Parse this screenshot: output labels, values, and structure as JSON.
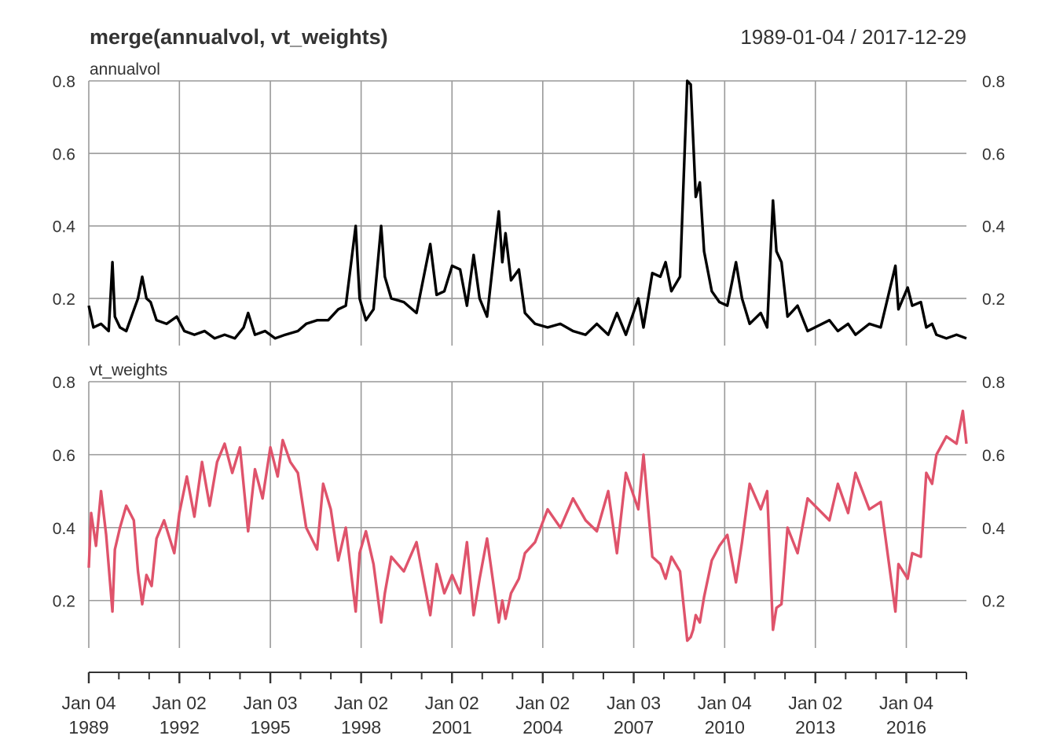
{
  "chart_data": {
    "type": "line",
    "title": "merge(annualvol, vt_weights)",
    "date_range": "1989-01-04 / 2017-12-29",
    "x_ticks": [
      {
        "date": "1989-01-04",
        "label_top": "Jan 04",
        "label_bottom": "1989"
      },
      {
        "date": "1992-01-02",
        "label_top": "Jan 02",
        "label_bottom": "1992"
      },
      {
        "date": "1995-01-03",
        "label_top": "Jan 03",
        "label_bottom": "1995"
      },
      {
        "date": "1998-01-02",
        "label_top": "Jan 02",
        "label_bottom": "1998"
      },
      {
        "date": "2001-01-02",
        "label_top": "Jan 02",
        "label_bottom": "2001"
      },
      {
        "date": "2004-01-02",
        "label_top": "Jan 02",
        "label_bottom": "2004"
      },
      {
        "date": "2007-01-03",
        "label_top": "Jan 03",
        "label_bottom": "2007"
      },
      {
        "date": "2010-01-04",
        "label_top": "Jan 04",
        "label_bottom": "2010"
      },
      {
        "date": "2013-01-02",
        "label_top": "Jan 02",
        "label_bottom": "2013"
      },
      {
        "date": "2016-01-04",
        "label_top": "Jan 04",
        "label_bottom": "2016"
      }
    ],
    "x_range": [
      "1989-01-04",
      "2017-12-29"
    ],
    "grid": true,
    "panels": [
      {
        "name": "annualvol",
        "color": "#000000",
        "ylim": [
          0.07,
          0.8
        ],
        "yticks": [
          "0.2",
          "0.4",
          "0.6",
          "0.8"
        ],
        "points": [
          [
            "1989-01-04",
            0.18
          ],
          [
            "1989-03-01",
            0.12
          ],
          [
            "1989-06-01",
            0.13
          ],
          [
            "1989-09-01",
            0.11
          ],
          [
            "1989-10-16",
            0.3
          ],
          [
            "1989-11-15",
            0.15
          ],
          [
            "1990-01-15",
            0.12
          ],
          [
            "1990-04-01",
            0.11
          ],
          [
            "1990-08-20",
            0.2
          ],
          [
            "1990-10-10",
            0.26
          ],
          [
            "1990-12-01",
            0.2
          ],
          [
            "1991-01-20",
            0.19
          ],
          [
            "1991-04-01",
            0.14
          ],
          [
            "1991-08-01",
            0.13
          ],
          [
            "1991-12-01",
            0.15
          ],
          [
            "1992-03-01",
            0.11
          ],
          [
            "1992-07-01",
            0.1
          ],
          [
            "1992-11-01",
            0.11
          ],
          [
            "1993-03-01",
            0.09
          ],
          [
            "1993-07-01",
            0.1
          ],
          [
            "1993-11-01",
            0.09
          ],
          [
            "1994-02-15",
            0.12
          ],
          [
            "1994-04-10",
            0.16
          ],
          [
            "1994-07-01",
            0.1
          ],
          [
            "1994-11-01",
            0.11
          ],
          [
            "1995-03-01",
            0.09
          ],
          [
            "1995-07-01",
            0.1
          ],
          [
            "1995-12-01",
            0.11
          ],
          [
            "1996-03-10",
            0.13
          ],
          [
            "1996-07-20",
            0.14
          ],
          [
            "1996-12-01",
            0.14
          ],
          [
            "1997-04-01",
            0.17
          ],
          [
            "1997-07-01",
            0.18
          ],
          [
            "1997-10-28",
            0.4
          ],
          [
            "1997-12-15",
            0.2
          ],
          [
            "1998-03-01",
            0.14
          ],
          [
            "1998-06-01",
            0.17
          ],
          [
            "1998-08-31",
            0.4
          ],
          [
            "1998-10-15",
            0.26
          ],
          [
            "1999-01-01",
            0.2
          ],
          [
            "1999-06-01",
            0.19
          ],
          [
            "1999-11-01",
            0.16
          ],
          [
            "2000-04-15",
            0.35
          ],
          [
            "2000-07-01",
            0.21
          ],
          [
            "2000-10-01",
            0.22
          ],
          [
            "2001-01-03",
            0.29
          ],
          [
            "2001-04-10",
            0.28
          ],
          [
            "2001-07-01",
            0.18
          ],
          [
            "2001-09-20",
            0.32
          ],
          [
            "2001-12-01",
            0.2
          ],
          [
            "2002-03-01",
            0.15
          ],
          [
            "2002-07-20",
            0.44
          ],
          [
            "2002-09-01",
            0.3
          ],
          [
            "2002-10-10",
            0.38
          ],
          [
            "2002-12-15",
            0.25
          ],
          [
            "2003-03-20",
            0.28
          ],
          [
            "2003-06-01",
            0.16
          ],
          [
            "2003-10-01",
            0.13
          ],
          [
            "2004-03-01",
            0.12
          ],
          [
            "2004-08-01",
            0.13
          ],
          [
            "2005-01-01",
            0.11
          ],
          [
            "2005-06-01",
            0.1
          ],
          [
            "2005-10-15",
            0.13
          ],
          [
            "2006-03-01",
            0.1
          ],
          [
            "2006-06-15",
            0.16
          ],
          [
            "2006-10-01",
            0.1
          ],
          [
            "2007-02-27",
            0.2
          ],
          [
            "2007-05-01",
            0.12
          ],
          [
            "2007-08-15",
            0.27
          ],
          [
            "2007-11-20",
            0.26
          ],
          [
            "2008-01-22",
            0.3
          ],
          [
            "2008-04-01",
            0.22
          ],
          [
            "2008-07-15",
            0.26
          ],
          [
            "2008-10-10",
            0.8
          ],
          [
            "2008-11-20",
            0.79
          ],
          [
            "2008-12-20",
            0.64
          ],
          [
            "2009-01-20",
            0.48
          ],
          [
            "2009-03-10",
            0.52
          ],
          [
            "2009-05-01",
            0.33
          ],
          [
            "2009-08-01",
            0.22
          ],
          [
            "2009-11-01",
            0.19
          ],
          [
            "2010-02-05",
            0.18
          ],
          [
            "2010-05-20",
            0.3
          ],
          [
            "2010-08-01",
            0.2
          ],
          [
            "2010-11-01",
            0.13
          ],
          [
            "2011-03-15",
            0.16
          ],
          [
            "2011-06-01",
            0.12
          ],
          [
            "2011-08-10",
            0.47
          ],
          [
            "2011-09-20",
            0.33
          ],
          [
            "2011-11-20",
            0.3
          ],
          [
            "2012-02-01",
            0.15
          ],
          [
            "2012-06-01",
            0.18
          ],
          [
            "2012-10-01",
            0.11
          ],
          [
            "2013-06-20",
            0.14
          ],
          [
            "2013-10-01",
            0.11
          ],
          [
            "2014-02-01",
            0.13
          ],
          [
            "2014-05-01",
            0.1
          ],
          [
            "2014-10-15",
            0.13
          ],
          [
            "2015-03-01",
            0.12
          ],
          [
            "2015-08-25",
            0.29
          ],
          [
            "2015-10-01",
            0.17
          ],
          [
            "2016-01-20",
            0.23
          ],
          [
            "2016-03-15",
            0.18
          ],
          [
            "2016-06-27",
            0.19
          ],
          [
            "2016-09-01",
            0.12
          ],
          [
            "2016-11-10",
            0.13
          ],
          [
            "2017-01-01",
            0.1
          ],
          [
            "2017-05-01",
            0.09
          ],
          [
            "2017-09-01",
            0.1
          ],
          [
            "2017-12-29",
            0.09
          ]
        ]
      },
      {
        "name": "vt_weights",
        "color": "#DF536B",
        "ylim": [
          0.07,
          0.8
        ],
        "yticks": [
          "0.2",
          "0.4",
          "0.6",
          "0.8"
        ],
        "points": [
          [
            "1989-01-04",
            0.29
          ],
          [
            "1989-02-01",
            0.44
          ],
          [
            "1989-04-01",
            0.35
          ],
          [
            "1989-06-01",
            0.5
          ],
          [
            "1989-08-01",
            0.38
          ],
          [
            "1989-10-16",
            0.17
          ],
          [
            "1989-11-15",
            0.34
          ],
          [
            "1990-01-15",
            0.4
          ],
          [
            "1990-04-01",
            0.46
          ],
          [
            "1990-07-01",
            0.42
          ],
          [
            "1990-08-20",
            0.28
          ],
          [
            "1990-10-10",
            0.19
          ],
          [
            "1990-12-01",
            0.27
          ],
          [
            "1991-02-01",
            0.24
          ],
          [
            "1991-04-01",
            0.37
          ],
          [
            "1991-07-01",
            0.42
          ],
          [
            "1991-11-01",
            0.33
          ],
          [
            "1992-01-02",
            0.44
          ],
          [
            "1992-04-01",
            0.54
          ],
          [
            "1992-07-01",
            0.43
          ],
          [
            "1992-10-01",
            0.58
          ],
          [
            "1993-01-01",
            0.46
          ],
          [
            "1993-04-01",
            0.58
          ],
          [
            "1993-07-01",
            0.63
          ],
          [
            "1993-10-01",
            0.55
          ],
          [
            "1994-01-01",
            0.62
          ],
          [
            "1994-04-10",
            0.39
          ],
          [
            "1994-07-01",
            0.56
          ],
          [
            "1994-10-01",
            0.48
          ],
          [
            "1995-01-03",
            0.62
          ],
          [
            "1995-04-01",
            0.54
          ],
          [
            "1995-06-01",
            0.64
          ],
          [
            "1995-09-01",
            0.58
          ],
          [
            "1995-12-01",
            0.55
          ],
          [
            "1996-03-10",
            0.4
          ],
          [
            "1996-07-20",
            0.34
          ],
          [
            "1996-10-01",
            0.52
          ],
          [
            "1997-01-01",
            0.45
          ],
          [
            "1997-04-01",
            0.31
          ],
          [
            "1997-07-01",
            0.4
          ],
          [
            "1997-10-28",
            0.17
          ],
          [
            "1997-12-15",
            0.33
          ],
          [
            "1998-03-01",
            0.39
          ],
          [
            "1998-06-01",
            0.3
          ],
          [
            "1998-08-31",
            0.14
          ],
          [
            "1998-10-15",
            0.22
          ],
          [
            "1999-01-01",
            0.32
          ],
          [
            "1999-06-01",
            0.28
          ],
          [
            "1999-11-01",
            0.36
          ],
          [
            "2000-04-15",
            0.16
          ],
          [
            "2000-07-01",
            0.3
          ],
          [
            "2000-10-01",
            0.22
          ],
          [
            "2001-01-03",
            0.27
          ],
          [
            "2001-04-10",
            0.22
          ],
          [
            "2001-07-01",
            0.36
          ],
          [
            "2001-09-20",
            0.16
          ],
          [
            "2001-12-01",
            0.26
          ],
          [
            "2002-03-01",
            0.37
          ],
          [
            "2002-07-20",
            0.14
          ],
          [
            "2002-09-01",
            0.2
          ],
          [
            "2002-10-10",
            0.15
          ],
          [
            "2002-12-15",
            0.22
          ],
          [
            "2003-03-20",
            0.26
          ],
          [
            "2003-06-01",
            0.33
          ],
          [
            "2003-10-01",
            0.36
          ],
          [
            "2004-03-01",
            0.45
          ],
          [
            "2004-08-01",
            0.4
          ],
          [
            "2005-01-01",
            0.48
          ],
          [
            "2005-06-01",
            0.42
          ],
          [
            "2005-10-15",
            0.39
          ],
          [
            "2006-03-01",
            0.5
          ],
          [
            "2006-06-15",
            0.33
          ],
          [
            "2006-10-01",
            0.55
          ],
          [
            "2007-02-27",
            0.45
          ],
          [
            "2007-05-01",
            0.6
          ],
          [
            "2007-08-15",
            0.32
          ],
          [
            "2007-11-20",
            0.3
          ],
          [
            "2008-01-22",
            0.26
          ],
          [
            "2008-04-01",
            0.32
          ],
          [
            "2008-07-15",
            0.28
          ],
          [
            "2008-10-10",
            0.09
          ],
          [
            "2008-11-20",
            0.1
          ],
          [
            "2008-12-20",
            0.12
          ],
          [
            "2009-01-20",
            0.16
          ],
          [
            "2009-03-10",
            0.14
          ],
          [
            "2009-05-01",
            0.21
          ],
          [
            "2009-08-01",
            0.31
          ],
          [
            "2009-11-01",
            0.35
          ],
          [
            "2010-02-05",
            0.38
          ],
          [
            "2010-05-20",
            0.25
          ],
          [
            "2010-08-01",
            0.36
          ],
          [
            "2010-11-01",
            0.52
          ],
          [
            "2011-03-15",
            0.45
          ],
          [
            "2011-06-01",
            0.5
          ],
          [
            "2011-08-10",
            0.12
          ],
          [
            "2011-09-20",
            0.18
          ],
          [
            "2011-11-20",
            0.19
          ],
          [
            "2012-02-01",
            0.4
          ],
          [
            "2012-06-01",
            0.33
          ],
          [
            "2012-10-01",
            0.48
          ],
          [
            "2013-06-20",
            0.42
          ],
          [
            "2013-10-01",
            0.52
          ],
          [
            "2014-02-01",
            0.44
          ],
          [
            "2014-05-01",
            0.55
          ],
          [
            "2014-10-15",
            0.45
          ],
          [
            "2015-03-01",
            0.47
          ],
          [
            "2015-08-25",
            0.17
          ],
          [
            "2015-10-01",
            0.3
          ],
          [
            "2016-01-20",
            0.26
          ],
          [
            "2016-03-15",
            0.33
          ],
          [
            "2016-06-27",
            0.32
          ],
          [
            "2016-09-01",
            0.55
          ],
          [
            "2016-11-10",
            0.52
          ],
          [
            "2017-01-01",
            0.6
          ],
          [
            "2017-05-01",
            0.65
          ],
          [
            "2017-09-01",
            0.63
          ],
          [
            "2017-11-15",
            0.72
          ],
          [
            "2017-12-29",
            0.63
          ]
        ]
      }
    ]
  }
}
